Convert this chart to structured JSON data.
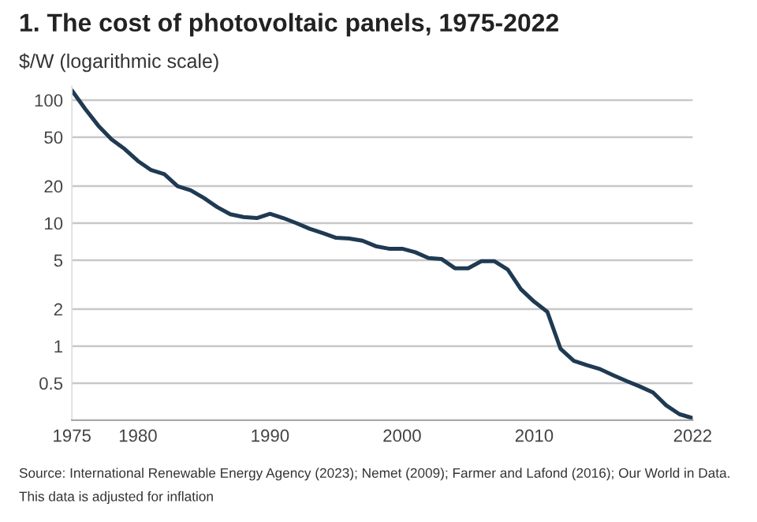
{
  "chart_data": {
    "type": "line",
    "title": "1. The cost of photovoltaic panels, 1975-2022",
    "subtitle": "$/W (logarithmic scale)",
    "x": [
      1975,
      1976,
      1977,
      1978,
      1979,
      1980,
      1981,
      1982,
      1983,
      1984,
      1985,
      1986,
      1987,
      1988,
      1989,
      1990,
      1991,
      1992,
      1993,
      1994,
      1995,
      1996,
      1997,
      1998,
      1999,
      2000,
      2001,
      2002,
      2003,
      2004,
      2005,
      2006,
      2007,
      2008,
      2009,
      2010,
      2011,
      2012,
      2013,
      2014,
      2015,
      2016,
      2017,
      2018,
      2019,
      2020,
      2021,
      2022
    ],
    "series": [
      {
        "color": "#1f3a52",
        "values": [
          120,
          85,
          62,
          48,
          40,
          32,
          27,
          25,
          20,
          18.5,
          16,
          13.5,
          11.8,
          11.2,
          11,
          11.9,
          11,
          10,
          9,
          8.3,
          7.6,
          7.5,
          7.2,
          6.5,
          6.2,
          6.2,
          5.8,
          5.2,
          5.1,
          4.3,
          4.3,
          4.9,
          4.9,
          4.2,
          2.9,
          2.3,
          1.9,
          0.95,
          0.76,
          0.7,
          0.65,
          0.58,
          0.52,
          0.47,
          0.42,
          0.33,
          0.28,
          0.26
        ]
      }
    ],
    "log": "y",
    "xlim": [
      1975,
      2022
    ],
    "ylim": [
      0.25,
      130
    ],
    "xticks": [
      1975,
      1980,
      1990,
      2000,
      2010,
      2022
    ],
    "yticks": [
      100,
      50,
      20,
      10,
      5,
      2,
      1,
      0.5
    ],
    "grid": "y",
    "annotations": [
      "Source: International Renewable Energy Agency (2023); Nemet (2009); Farmer and Lafond (2016); Our World in Data.",
      "This data is adjusted for inflation"
    ]
  }
}
